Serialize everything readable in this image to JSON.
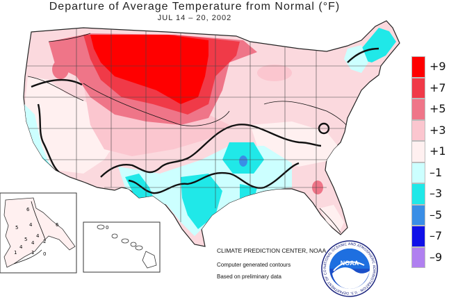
{
  "header": {
    "title": "Departure of Average Temperature from Normal (°F)",
    "date_range": "JUL 14 – 20, 2002"
  },
  "legend": {
    "items": [
      {
        "label": "+9",
        "color": "#ff0000"
      },
      {
        "label": "+7",
        "color": "#f03a48"
      },
      {
        "label": "+5",
        "color": "#ef7588"
      },
      {
        "label": "+3",
        "color": "#fbc6cf"
      },
      {
        "label": "+1",
        "color": "#fff0f0"
      },
      {
        "label": "–1",
        "color": "#ccffff"
      },
      {
        "label": "–3",
        "color": "#20e8e8"
      },
      {
        "label": "–5",
        "color": "#3a8ee6"
      },
      {
        "label": "–7",
        "color": "#1010e8"
      },
      {
        "label": "–9",
        "color": "#b080f0"
      }
    ]
  },
  "credits": {
    "center": "CLIMATE PREDICTION CENTER, NOAA",
    "line2": "Computer generated contours",
    "line3": "Based on preliminary data"
  },
  "alaska_contour_labels": [
    "6",
    "5",
    "4",
    "4",
    "5",
    "4",
    "2",
    "4",
    "1",
    "0",
    "1",
    "6"
  ],
  "hawaii_contour_labels": [
    "0"
  ],
  "noaa_logo": {
    "text": "NOAA",
    "ring_text": "NATIONAL OCEANIC AND ATMOSPHERIC ADMINISTRATION · U.S. DEPARTMENT OF COMMERCE"
  }
}
